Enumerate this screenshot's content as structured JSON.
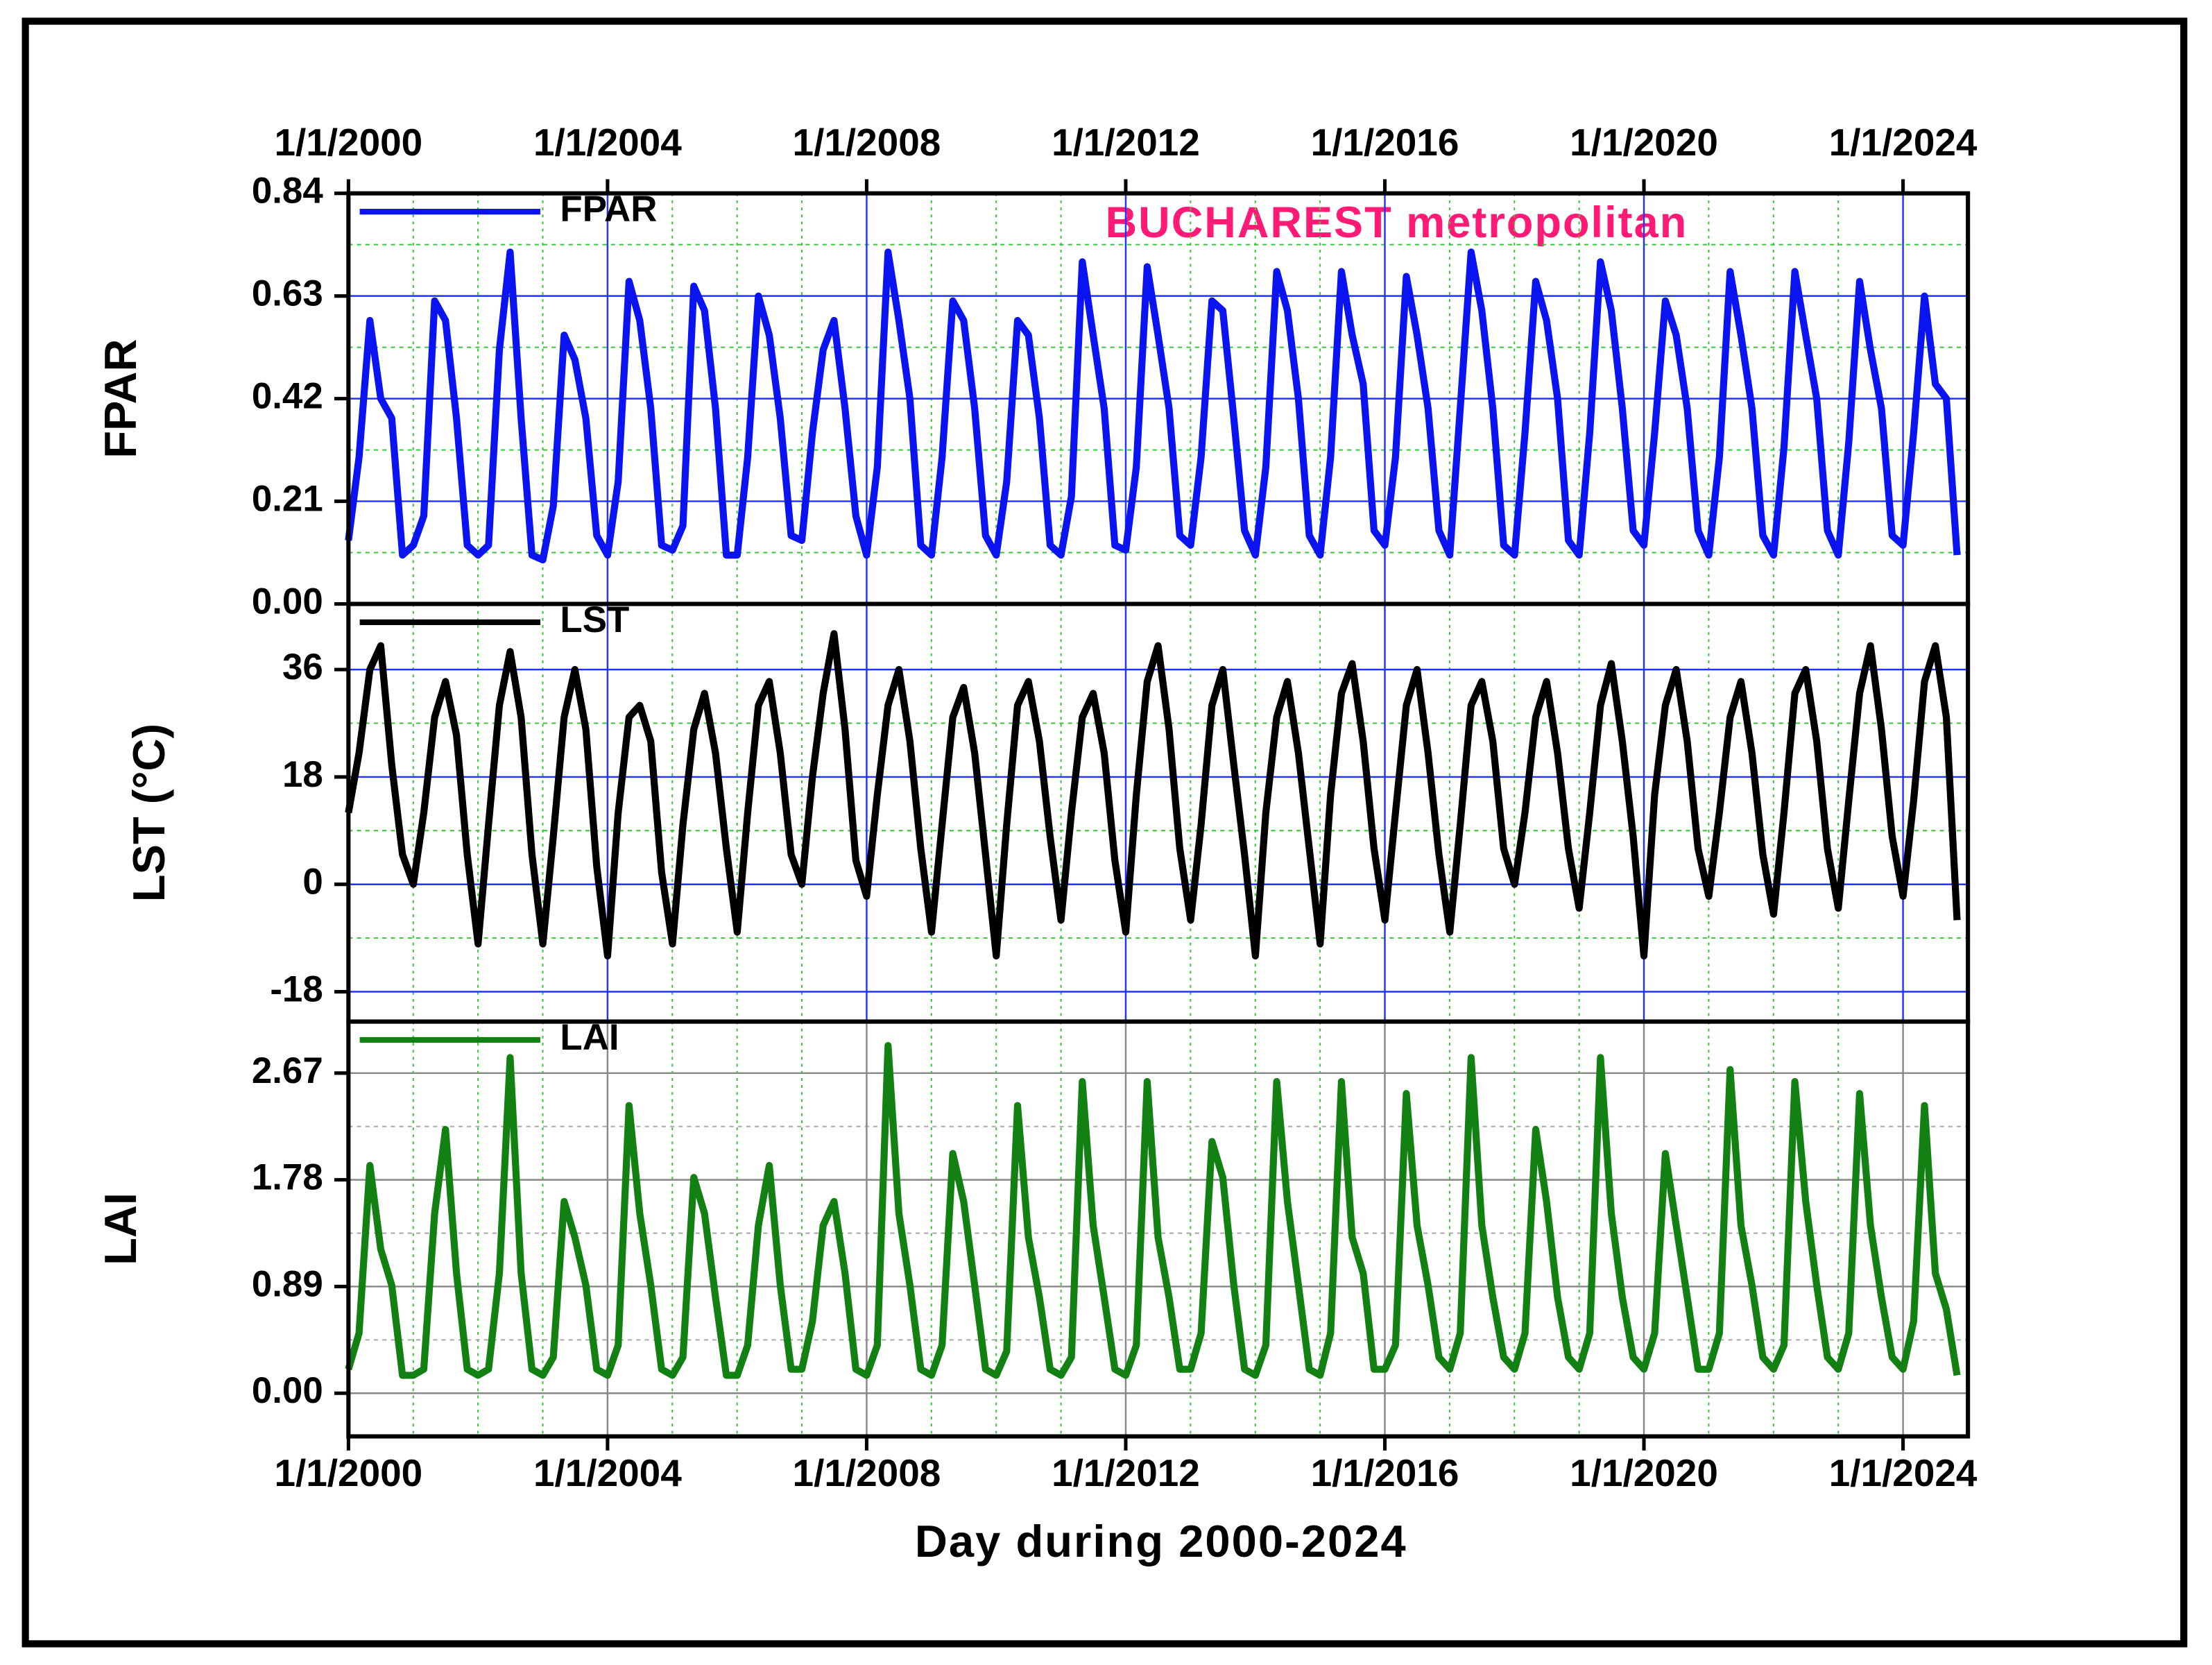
{
  "chart_data": {
    "type": "line",
    "title": "BUCHAREST  metropolitan",
    "x_label": "Day during 2000-2024",
    "xlim": [
      "2000-01-01",
      "2025-01-01"
    ],
    "xticks": [
      {
        "value": "2000-01-01",
        "label": "1/1/2000"
      },
      {
        "value": "2004-01-01",
        "label": "1/1/2004"
      },
      {
        "value": "2008-01-01",
        "label": "1/1/2008"
      },
      {
        "value": "2012-01-01",
        "label": "1/1/2012"
      },
      {
        "value": "2016-01-01",
        "label": "1/1/2016"
      },
      {
        "value": "2020-01-01",
        "label": "1/1/2020"
      },
      {
        "value": "2024-01-01",
        "label": "1/1/2024"
      }
    ],
    "grid": true,
    "x": [
      "2000-01-01",
      "2000-03-01",
      "2000-05-01",
      "2000-07-01",
      "2000-09-01",
      "2000-11-01",
      "2001-01-01",
      "2001-03-01",
      "2001-05-01",
      "2001-07-01",
      "2001-09-01",
      "2001-11-01",
      "2002-01-01",
      "2002-03-01",
      "2002-05-01",
      "2002-07-01",
      "2002-09-01",
      "2002-11-01",
      "2003-01-01",
      "2003-03-01",
      "2003-05-01",
      "2003-07-01",
      "2003-09-01",
      "2003-11-01",
      "2004-01-01",
      "2004-03-01",
      "2004-05-01",
      "2004-07-01",
      "2004-09-01",
      "2004-11-01",
      "2005-01-01",
      "2005-03-01",
      "2005-05-01",
      "2005-07-01",
      "2005-09-01",
      "2005-11-01",
      "2006-01-01",
      "2006-03-01",
      "2006-05-01",
      "2006-07-01",
      "2006-09-01",
      "2006-11-01",
      "2007-01-01",
      "2007-03-01",
      "2007-05-01",
      "2007-07-01",
      "2007-09-01",
      "2007-11-01",
      "2008-01-01",
      "2008-03-01",
      "2008-05-01",
      "2008-07-01",
      "2008-09-01",
      "2008-11-01",
      "2009-01-01",
      "2009-03-01",
      "2009-05-01",
      "2009-07-01",
      "2009-09-01",
      "2009-11-01",
      "2010-01-01",
      "2010-03-01",
      "2010-05-01",
      "2010-07-01",
      "2010-09-01",
      "2010-11-01",
      "2011-01-01",
      "2011-03-01",
      "2011-05-01",
      "2011-07-01",
      "2011-09-01",
      "2011-11-01",
      "2012-01-01",
      "2012-03-01",
      "2012-05-01",
      "2012-07-01",
      "2012-09-01",
      "2012-11-01",
      "2013-01-01",
      "2013-03-01",
      "2013-05-01",
      "2013-07-01",
      "2013-09-01",
      "2013-11-01",
      "2014-01-01",
      "2014-03-01",
      "2014-05-01",
      "2014-07-01",
      "2014-09-01",
      "2014-11-01",
      "2015-01-01",
      "2015-03-01",
      "2015-05-01",
      "2015-07-01",
      "2015-09-01",
      "2015-11-01",
      "2016-01-01",
      "2016-03-01",
      "2016-05-01",
      "2016-07-01",
      "2016-09-01",
      "2016-11-01",
      "2017-01-01",
      "2017-03-01",
      "2017-05-01",
      "2017-07-01",
      "2017-09-01",
      "2017-11-01",
      "2018-01-01",
      "2018-03-01",
      "2018-05-01",
      "2018-07-01",
      "2018-09-01",
      "2018-11-01",
      "2019-01-01",
      "2019-03-01",
      "2019-05-01",
      "2019-07-01",
      "2019-09-01",
      "2019-11-01",
      "2020-01-01",
      "2020-03-01",
      "2020-05-01",
      "2020-07-01",
      "2020-09-01",
      "2020-11-01",
      "2021-01-01",
      "2021-03-01",
      "2021-05-01",
      "2021-07-01",
      "2021-09-01",
      "2021-11-01",
      "2022-01-01",
      "2022-03-01",
      "2022-05-01",
      "2022-07-01",
      "2022-09-01",
      "2022-11-01",
      "2023-01-01",
      "2023-03-01",
      "2023-05-01",
      "2023-07-01",
      "2023-09-01",
      "2023-11-01",
      "2024-01-01",
      "2024-03-01",
      "2024-05-01",
      "2024-07-01",
      "2024-09-01",
      "2024-11-01"
    ],
    "panels": [
      {
        "y_label": "FPAR",
        "ylim": [
          0,
          0.84
        ],
        "grid_color": "#2233ff",
        "yticks": [
          {
            "value": 0,
            "label": "0.00"
          },
          0.21,
          0.42,
          0.63,
          0.84
        ],
        "series": [
          {
            "name": "FPAR",
            "color": "#0a14f0",
            "values": [
              0.13,
              0.3,
              0.58,
              0.42,
              0.38,
              0.1,
              0.12,
              0.18,
              0.62,
              0.58,
              0.38,
              0.12,
              0.1,
              0.12,
              0.52,
              0.72,
              0.38,
              0.1,
              0.09,
              0.2,
              0.55,
              0.5,
              0.38,
              0.14,
              0.1,
              0.25,
              0.66,
              0.58,
              0.4,
              0.12,
              0.11,
              0.16,
              0.65,
              0.6,
              0.4,
              0.1,
              0.1,
              0.3,
              0.63,
              0.55,
              0.38,
              0.14,
              0.13,
              0.35,
              0.52,
              0.58,
              0.4,
              0.18,
              0.1,
              0.28,
              0.72,
              0.58,
              0.42,
              0.12,
              0.1,
              0.3,
              0.62,
              0.58,
              0.4,
              0.14,
              0.1,
              0.25,
              0.58,
              0.55,
              0.38,
              0.12,
              0.1,
              0.22,
              0.7,
              0.55,
              0.4,
              0.12,
              0.11,
              0.28,
              0.69,
              0.55,
              0.4,
              0.14,
              0.12,
              0.3,
              0.62,
              0.6,
              0.38,
              0.15,
              0.1,
              0.28,
              0.68,
              0.6,
              0.42,
              0.14,
              0.1,
              0.3,
              0.68,
              0.55,
              0.45,
              0.15,
              0.12,
              0.3,
              0.67,
              0.55,
              0.4,
              0.15,
              0.1,
              0.4,
              0.72,
              0.6,
              0.4,
              0.12,
              0.1,
              0.35,
              0.66,
              0.58,
              0.42,
              0.13,
              0.1,
              0.35,
              0.7,
              0.6,
              0.4,
              0.15,
              0.12,
              0.35,
              0.62,
              0.55,
              0.4,
              0.15,
              0.1,
              0.3,
              0.68,
              0.55,
              0.4,
              0.14,
              0.1,
              0.32,
              0.68,
              0.55,
              0.42,
              0.15,
              0.1,
              0.33,
              0.66,
              0.52,
              0.4,
              0.14,
              0.12,
              0.35,
              0.63,
              0.45,
              0.42,
              0.1
            ]
          }
        ]
      },
      {
        "y_label": "LST (°C)",
        "ylim": [
          -23,
          47
        ],
        "grid_color": "#2233ff",
        "yticks": [
          -18,
          0,
          18,
          36
        ],
        "series": [
          {
            "name": "LST",
            "color": "#000000",
            "values": [
              12,
              22,
              36,
              40,
              20,
              5,
              0,
              12,
              28,
              34,
              25,
              5,
              -10,
              10,
              30,
              39,
              28,
              5,
              -10,
              8,
              28,
              36,
              26,
              3,
              -12,
              12,
              28,
              30,
              24,
              2,
              -10,
              10,
              26,
              32,
              22,
              6,
              -8,
              12,
              30,
              34,
              22,
              5,
              0,
              18,
              32,
              42,
              26,
              4,
              -2,
              15,
              30,
              36,
              24,
              6,
              -8,
              10,
              28,
              33,
              22,
              5,
              -12,
              10,
              30,
              34,
              24,
              8,
              -6,
              12,
              28,
              32,
              22,
              4,
              -8,
              15,
              34,
              40,
              26,
              6,
              -6,
              10,
              30,
              36,
              20,
              5,
              -12,
              12,
              28,
              34,
              22,
              6,
              -10,
              15,
              32,
              37,
              24,
              6,
              -6,
              12,
              30,
              36,
              22,
              5,
              -8,
              10,
              30,
              34,
              24,
              6,
              0,
              12,
              28,
              34,
              22,
              6,
              -4,
              12,
              30,
              37,
              24,
              8,
              -12,
              15,
              30,
              36,
              24,
              6,
              -2,
              12,
              28,
              34,
              22,
              5,
              -5,
              12,
              32,
              36,
              24,
              6,
              -4,
              14,
              32,
              40,
              26,
              8,
              -2,
              14,
              34,
              40,
              28,
              -6
            ]
          }
        ]
      },
      {
        "y_label": "LAI",
        "ylim": [
          -0.36,
          3.1
        ],
        "grid_color": "#888888",
        "yticks": [
          {
            "value": 0,
            "label": "0.00"
          },
          0.89,
          1.78,
          2.67
        ],
        "series": [
          {
            "name": "LAI",
            "color": "#138013",
            "values": [
              0.2,
              0.5,
              1.9,
              1.2,
              0.9,
              0.15,
              0.15,
              0.2,
              1.5,
              2.2,
              1.0,
              0.2,
              0.15,
              0.2,
              1.0,
              2.8,
              1.0,
              0.2,
              0.15,
              0.3,
              1.6,
              1.3,
              0.9,
              0.2,
              0.15,
              0.4,
              2.4,
              1.5,
              0.9,
              0.2,
              0.15,
              0.3,
              1.8,
              1.5,
              0.8,
              0.15,
              0.15,
              0.4,
              1.4,
              1.9,
              0.9,
              0.2,
              0.2,
              0.6,
              1.4,
              1.6,
              1.0,
              0.2,
              0.15,
              0.4,
              2.9,
              1.5,
              0.9,
              0.2,
              0.15,
              0.4,
              2.0,
              1.6,
              0.9,
              0.2,
              0.15,
              0.35,
              2.4,
              1.3,
              0.8,
              0.2,
              0.15,
              0.3,
              2.6,
              1.4,
              0.8,
              0.2,
              0.15,
              0.4,
              2.6,
              1.3,
              0.8,
              0.2,
              0.2,
              0.5,
              2.1,
              1.8,
              0.9,
              0.2,
              0.15,
              0.4,
              2.6,
              1.6,
              0.9,
              0.2,
              0.15,
              0.5,
              2.6,
              1.3,
              1.0,
              0.2,
              0.2,
              0.4,
              2.5,
              1.4,
              0.9,
              0.3,
              0.2,
              0.5,
              2.8,
              1.4,
              0.8,
              0.3,
              0.2,
              0.5,
              2.2,
              1.6,
              0.8,
              0.3,
              0.2,
              0.5,
              2.8,
              1.5,
              0.8,
              0.3,
              0.2,
              0.5,
              2.0,
              1.4,
              0.8,
              0.2,
              0.2,
              0.5,
              2.7,
              1.4,
              0.9,
              0.3,
              0.2,
              0.4,
              2.6,
              1.6,
              0.9,
              0.3,
              0.2,
              0.5,
              2.5,
              1.4,
              0.8,
              0.3,
              0.2,
              0.6,
              2.4,
              1.0,
              0.7,
              0.15
            ]
          }
        ]
      }
    ]
  }
}
